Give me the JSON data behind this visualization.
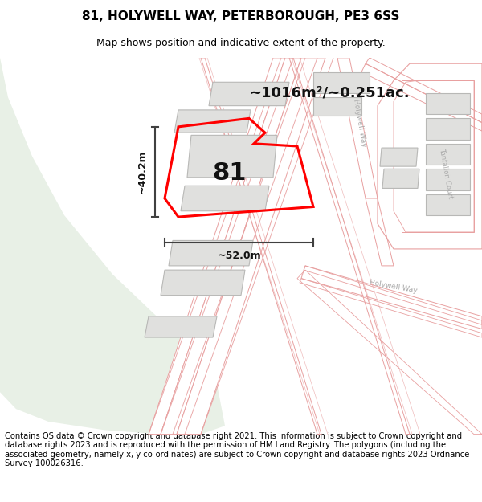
{
  "title": "81, HOLYWELL WAY, PETERBOROUGH, PE3 6SS",
  "subtitle": "Map shows position and indicative extent of the property.",
  "footer": "Contains OS data © Crown copyright and database right 2021. This information is subject to Crown copyright and database rights 2023 and is reproduced with the permission of HM Land Registry. The polygons (including the associated geometry, namely x, y co-ordinates) are subject to Crown copyright and database rights 2023 Ordnance Survey 100026316.",
  "area_label": "~1016m²/~0.251ac.",
  "width_label": "~52.0m",
  "height_label": "~40.2m",
  "number_label": "81",
  "map_bg": "#f8f8f6",
  "green_color": "#e8f0e6",
  "road_fill": "#ffffff",
  "road_line_color": "#e8a0a0",
  "road_line_thin": "#e8a0a0",
  "building_fill": "#e0e0de",
  "building_edge": "#b8b8b6",
  "highlight_color": "#ff0000",
  "dim_color": "#404040",
  "road_label_color": "#aaaaaa",
  "title_fontsize": 11,
  "subtitle_fontsize": 9,
  "footer_fontsize": 7.2
}
